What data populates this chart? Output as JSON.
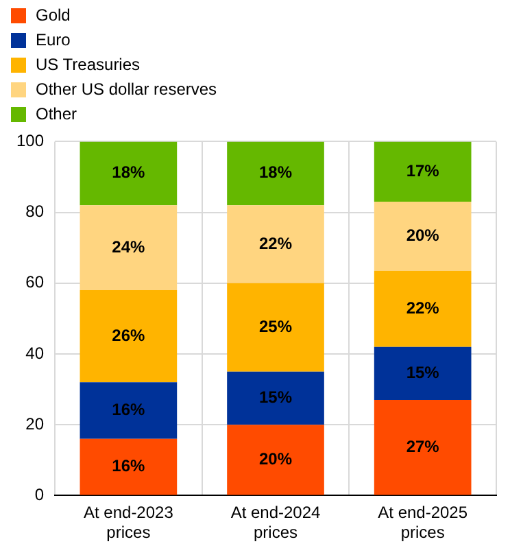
{
  "chart_data": {
    "type": "bar",
    "stacked": true,
    "legend": "top left",
    "grid": true,
    "categories": [
      "At end-2023 prices",
      "At end-2024 prices",
      "At end-2025 prices"
    ],
    "ylim": [
      0,
      100
    ],
    "yticks": [
      0,
      20,
      40,
      60,
      80,
      100
    ],
    "series": [
      {
        "name": "Gold",
        "color": "#ff4b00",
        "values": [
          16,
          20,
          27
        ],
        "value_labels": [
          "16%",
          "20%",
          "27%"
        ]
      },
      {
        "name": "Euro",
        "color": "#003299",
        "values": [
          16,
          15,
          15
        ],
        "value_labels": [
          "16%",
          "15%",
          "15%"
        ]
      },
      {
        "name": "US Treasuries",
        "color": "#ffb400",
        "values": [
          26,
          25,
          21.5
        ],
        "value_labels": [
          "26%",
          "25%",
          "22%"
        ]
      },
      {
        "name": "Other US dollar reserves",
        "color": "#ffd580",
        "values": [
          24,
          22,
          19.5
        ],
        "value_labels": [
          "24%",
          "22%",
          "20%"
        ]
      },
      {
        "name": "Other",
        "color": "#65b800",
        "values": [
          18,
          18,
          17
        ],
        "value_labels": [
          "18%",
          "18%",
          "17%"
        ]
      }
    ]
  }
}
